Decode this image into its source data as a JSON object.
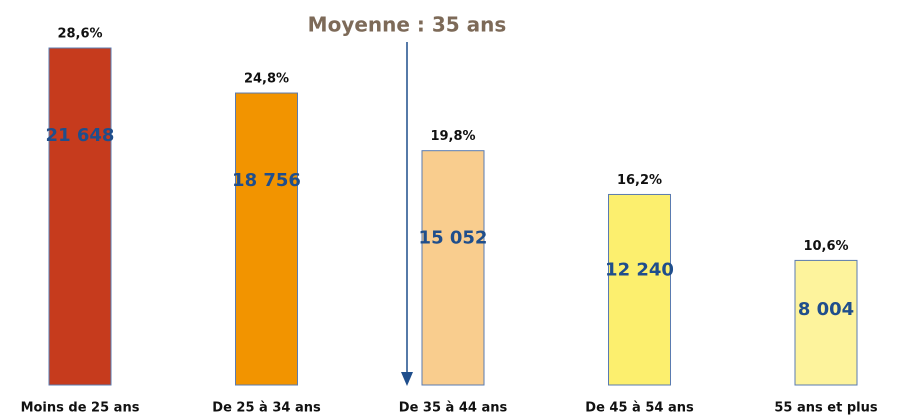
{
  "chart_data": {
    "type": "bar",
    "annotation": "Moyenne : 35 ans",
    "categories": [
      "Moins de 25 ans",
      "De 25 à 34 ans",
      "De 35 à 44 ans",
      "De 45 à 54 ans",
      "55 ans et plus"
    ],
    "values": [
      21648,
      18756,
      15052,
      12240,
      8004
    ],
    "value_labels": [
      "21 648",
      "18 756",
      "15 052",
      "12 240",
      "8 004"
    ],
    "shares": [
      28.6,
      24.8,
      19.8,
      16.2,
      10.6
    ],
    "share_labels": [
      "28,6%",
      "24,8%",
      "19,8%",
      "16,2%",
      "10,6%"
    ],
    "colors": [
      "#c63b1d",
      "#f29400",
      "#f9cd8e",
      "#fcef6e",
      "#fdf39c"
    ],
    "ylim": [
      0,
      24000
    ]
  }
}
